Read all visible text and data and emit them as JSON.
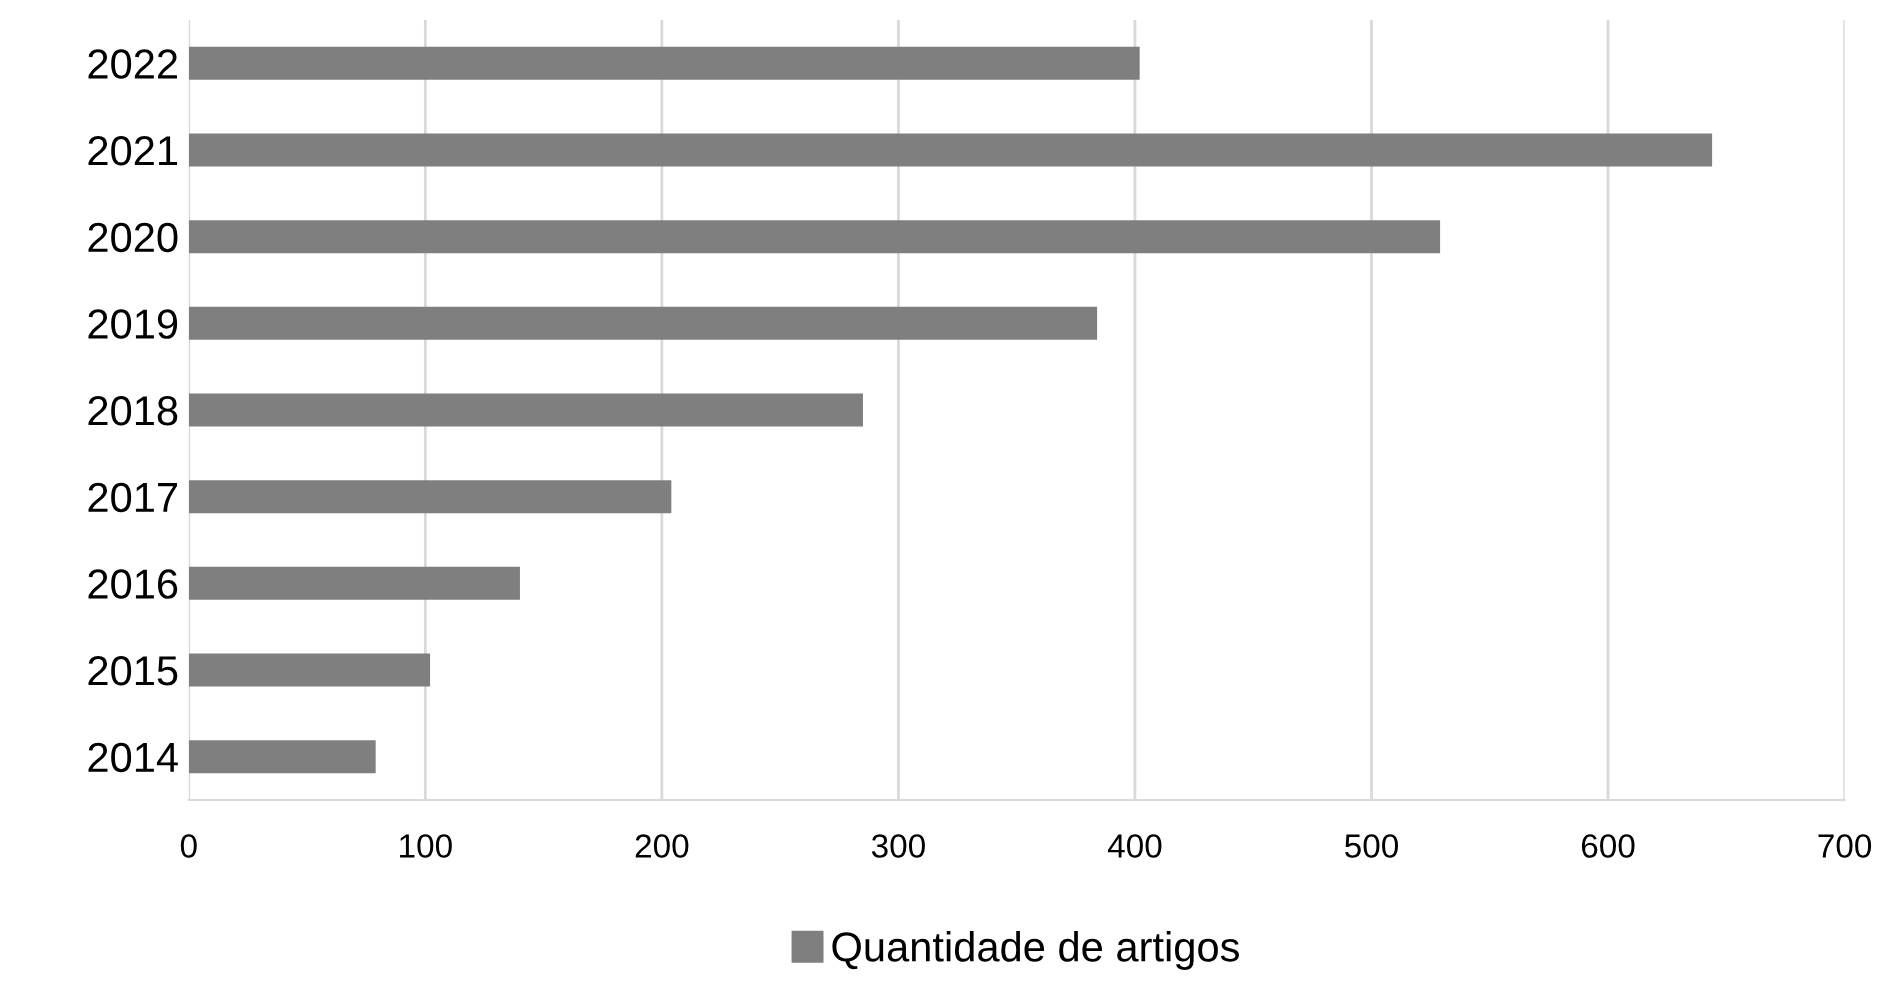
{
  "chart_data": {
    "type": "bar",
    "orientation": "horizontal",
    "categories": [
      "2022",
      "2021",
      "2020",
      "2019",
      "2018",
      "2017",
      "2016",
      "2015",
      "2014"
    ],
    "series": [
      {
        "name": "Quantidade de artigos",
        "color": "#7f7f7f",
        "values": [
          402,
          644,
          529,
          384,
          285,
          204,
          140,
          102,
          79
        ]
      }
    ],
    "xlim": [
      0,
      700
    ],
    "xticks": [
      0,
      100,
      200,
      300,
      400,
      500,
      600,
      700
    ],
    "grid": "x",
    "legend": "bottom"
  }
}
